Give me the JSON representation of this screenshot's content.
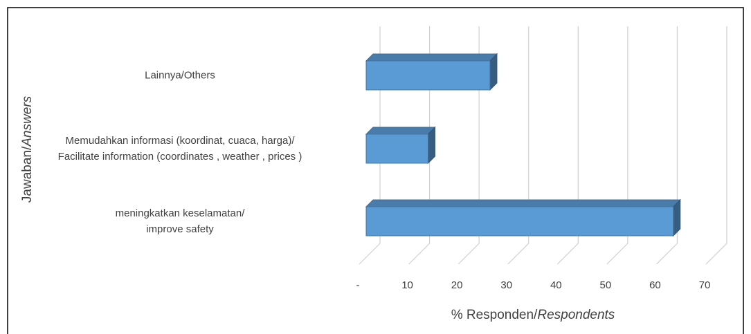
{
  "chart_data": {
    "type": "bar3d_horizontal",
    "categories": [
      "Lainnya/Others",
      "Memudahkan informasi (koordinat, cuaca, harga)/\nFacilitate information (coordinates , weather , prices )",
      "meningkatkan keselamatan/\nimprove safety"
    ],
    "values": [
      25,
      12.5,
      62
    ],
    "color": "#5b9bd5",
    "xlim": [
      0,
      70
    ],
    "xticks": [
      {
        "value": 0,
        "label": "-"
      },
      10,
      20,
      30,
      40,
      50,
      60,
      70
    ],
    "xlabel": [
      "% Responden/",
      "Respondents"
    ],
    "ylabel": [
      "Jawaban/",
      "Answers"
    ],
    "grid": true
  }
}
